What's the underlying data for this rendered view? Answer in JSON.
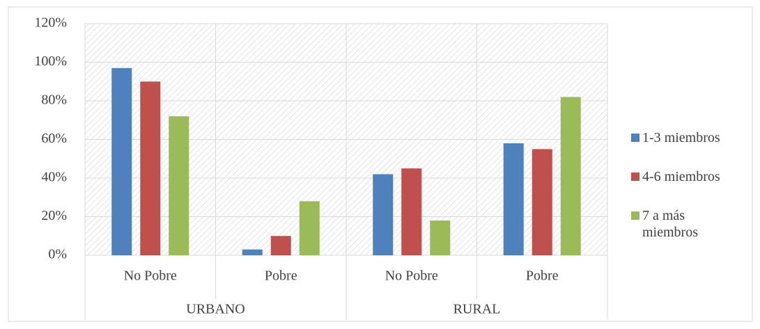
{
  "chart_data": {
    "type": "bar",
    "categories": [
      "No Pobre",
      "Pobre",
      "No Pobre",
      "Pobre"
    ],
    "groups": [
      "URBANO",
      "RURAL"
    ],
    "series": [
      {
        "name": "1-3 miembros",
        "color": "#4f81bd",
        "values": [
          97,
          3,
          42,
          58
        ]
      },
      {
        "name": "4-6 miembros",
        "color": "#c0504d",
        "values": [
          90,
          10,
          45,
          55
        ]
      },
      {
        "name": "7 a más miembros",
        "color": "#9bbb59",
        "values": [
          72,
          28,
          18,
          82
        ]
      }
    ],
    "ylim": [
      0,
      120
    ],
    "yticks": [
      {
        "value": 0,
        "label": "0%"
      },
      {
        "value": 20,
        "label": "20%"
      },
      {
        "value": 40,
        "label": "40%"
      },
      {
        "value": 60,
        "label": "60%"
      },
      {
        "value": 80,
        "label": "80%"
      },
      {
        "value": 100,
        "label": "100%"
      },
      {
        "value": 120,
        "label": "120%"
      }
    ],
    "grid": true,
    "legend": "right"
  }
}
